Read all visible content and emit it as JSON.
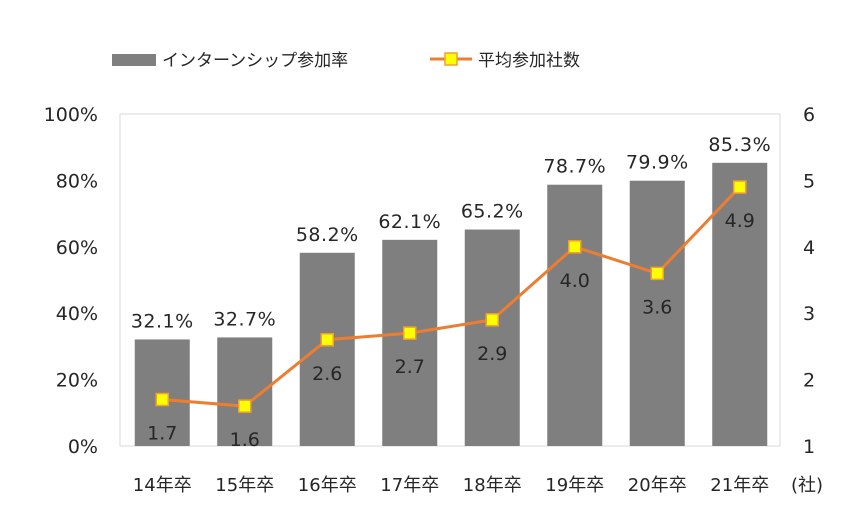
{
  "chart_data": {
    "type": "bar+line",
    "categories": [
      "14年卒",
      "15年卒",
      "16年卒",
      "17年卒",
      "18年卒",
      "19年卒",
      "20年卒",
      "21年卒"
    ],
    "series": [
      {
        "name": "インターンシップ参加率",
        "type": "bar",
        "axis": "left",
        "values": [
          32.1,
          32.7,
          58.2,
          62.1,
          65.2,
          78.7,
          79.9,
          85.3
        ],
        "labels": [
          "32.1%",
          "32.7%",
          "58.2%",
          "62.1%",
          "65.2%",
          "78.7%",
          "79.9%",
          "85.3%"
        ],
        "color": "#7f7f7f"
      },
      {
        "name": "平均参加社数",
        "type": "line",
        "axis": "right",
        "values": [
          1.7,
          1.6,
          2.6,
          2.7,
          2.9,
          4.0,
          3.6,
          4.9
        ],
        "labels": [
          "1.7",
          "1.6",
          "2.6",
          "2.7",
          "2.9",
          "4.0",
          "3.6",
          "4.9"
        ],
        "color": "#ed7d31",
        "marker_color": "#ffff00"
      }
    ],
    "y_left": {
      "ticks": [
        "0%",
        "20%",
        "40%",
        "60%",
        "80%",
        "100%"
      ],
      "lim": [
        0,
        100
      ]
    },
    "y_right": {
      "ticks": [
        "1",
        "2",
        "3",
        "4",
        "5",
        "6"
      ],
      "lim": [
        1,
        6
      ],
      "unit": "(社)"
    },
    "legend_position": "top-left",
    "grid": false
  }
}
